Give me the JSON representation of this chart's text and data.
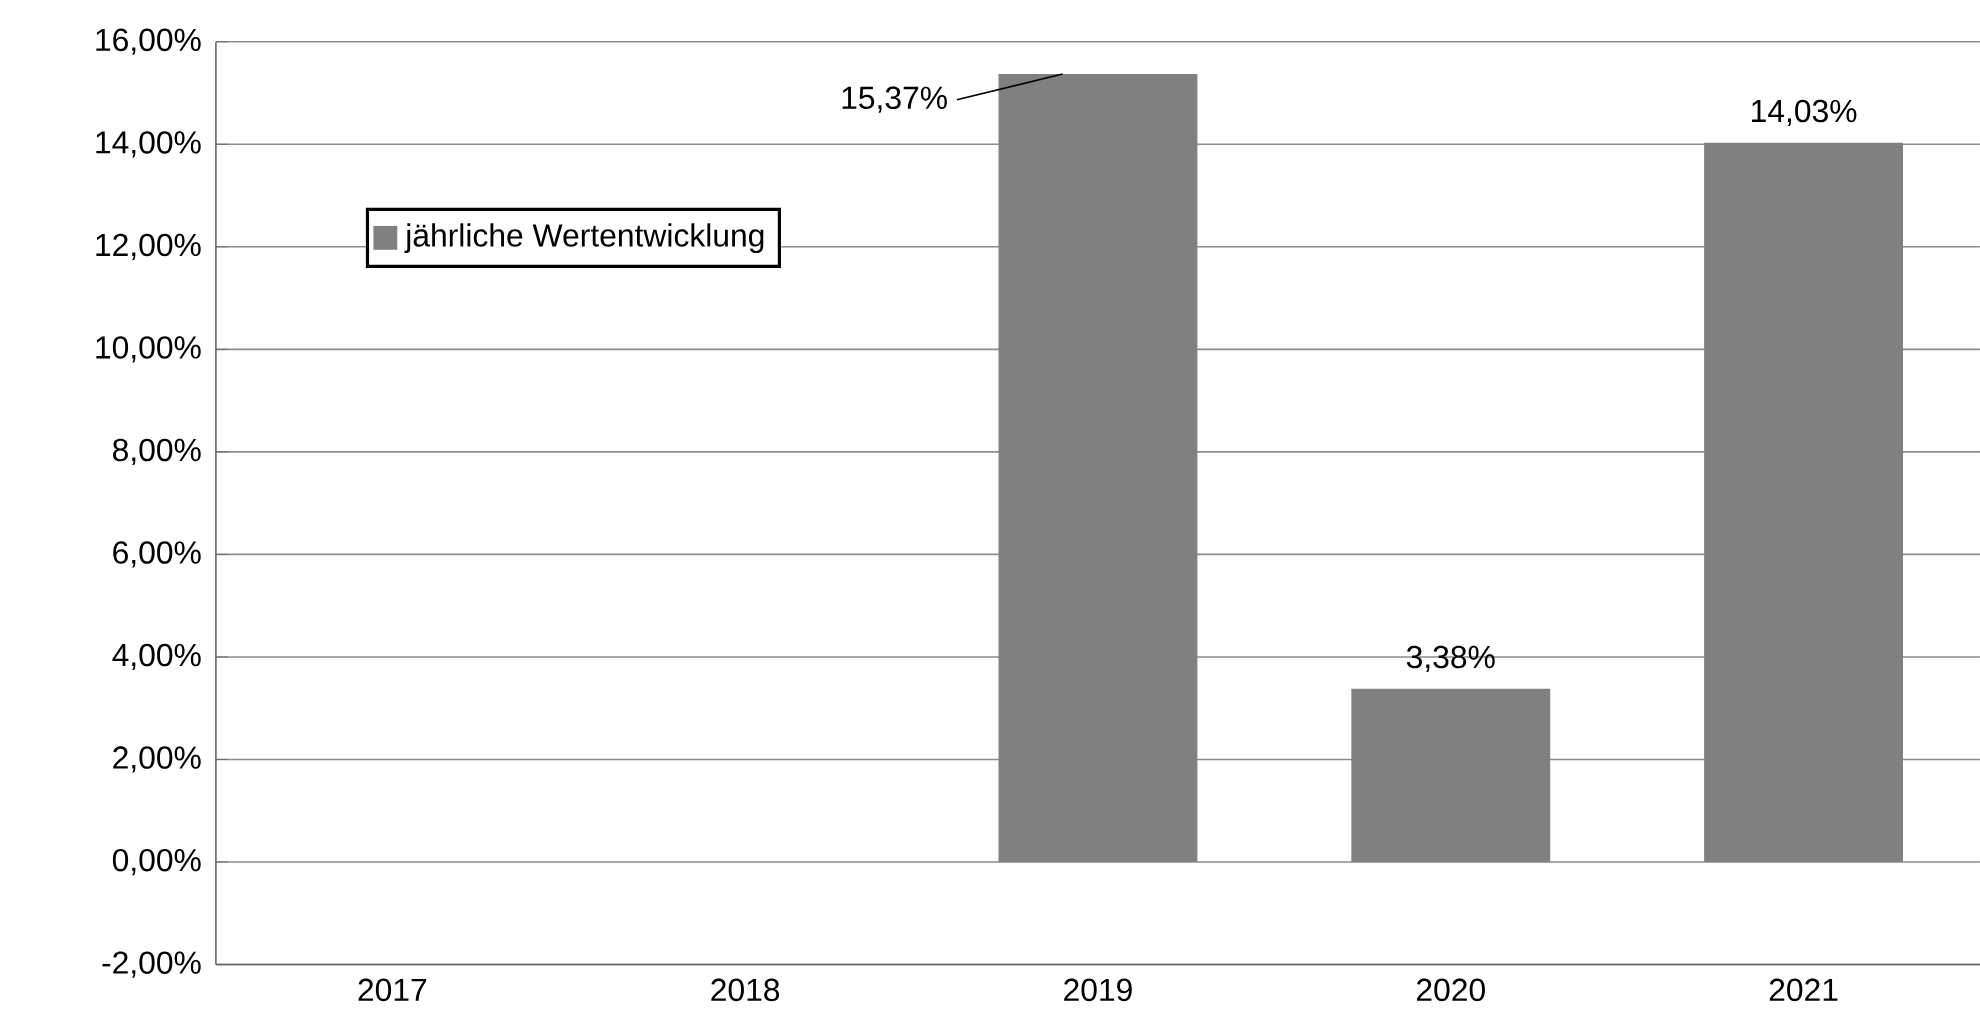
{
  "chart_data": {
    "type": "bar",
    "categories": [
      "2017",
      "2018",
      "2019",
      "2020",
      "2021"
    ],
    "series": [
      {
        "name": "jährliche Wertentwicklung",
        "color": "#808080",
        "values": [
          null,
          null,
          15.37,
          3.38,
          14.03
        ],
        "value_labels": [
          null,
          null,
          "15,37%",
          "3,38%",
          "14,03%"
        ]
      }
    ],
    "ylim": [
      -2,
      16
    ],
    "yticks": [
      {
        "value": -2,
        "label": "-2,00%"
      },
      {
        "value": 0,
        "label": "0,00%"
      },
      {
        "value": 2,
        "label": "2,00%"
      },
      {
        "value": 4,
        "label": "4,00%"
      },
      {
        "value": 6,
        "label": "6,00%"
      },
      {
        "value": 8,
        "label": "8,00%"
      },
      {
        "value": 10,
        "label": "10,00%"
      },
      {
        "value": 12,
        "label": "12,00%"
      },
      {
        "value": 14,
        "label": "14,00%"
      },
      {
        "value": 16,
        "label": "16,00%"
      }
    ],
    "grid": "y",
    "legend": "top left"
  }
}
